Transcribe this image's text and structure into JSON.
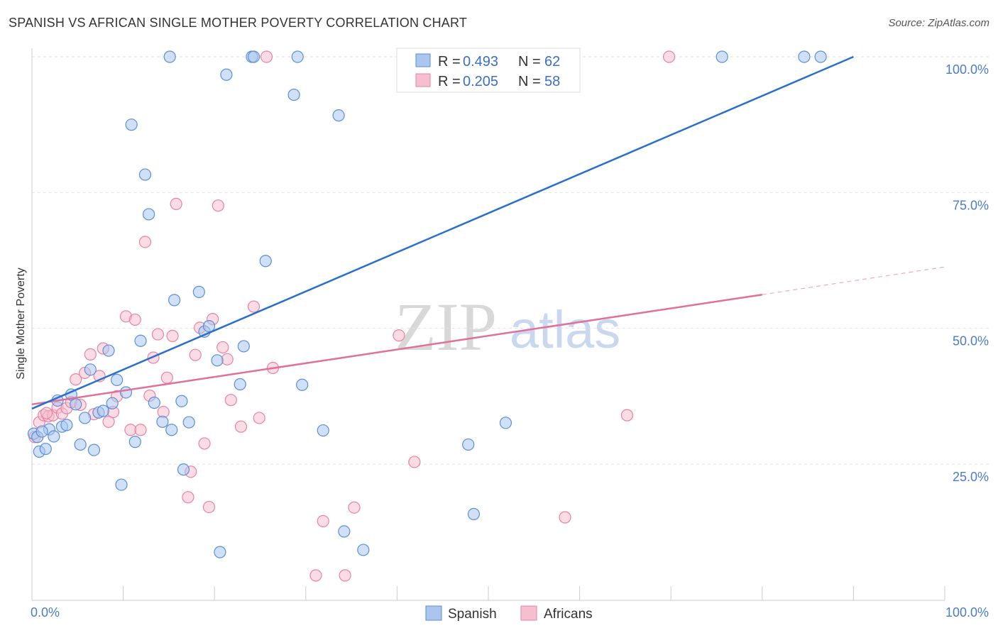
{
  "title": "SPANISH VS AFRICAN SINGLE MOTHER POVERTY CORRELATION CHART",
  "source": "Source: ZipAtlas.com",
  "watermark": {
    "zip": "ZIP",
    "atlas": "atlas"
  },
  "legend": {
    "rows": [
      {
        "r_label": "R =",
        "r_value": "0.493",
        "n_label": "N =",
        "n_value": "62"
      },
      {
        "r_label": "R =",
        "r_value": "0.205",
        "n_label": "N =",
        "n_value": "58"
      }
    ]
  },
  "bottom_legend": [
    "Spanish",
    "Africans"
  ],
  "colors": {
    "spanish_fill": "#aac6ee",
    "spanish_stroke": "#5b8fd6",
    "spanish_line": "#2a6fcc",
    "africans_fill": "#f6bfd0",
    "africans_stroke": "#e683a4",
    "africans_line": "#e07099"
  },
  "chart_data": {
    "type": "scatter",
    "title": "SPANISH VS AFRICAN SINGLE MOTHER POVERTY CORRELATION CHART",
    "xlabel": "",
    "ylabel": "Single Mother Poverty",
    "xlim": [
      0,
      100
    ],
    "ylim": [
      0,
      100
    ],
    "x_tick_labels": [
      "0.0%",
      "100.0%"
    ],
    "y_ticks": [
      25,
      50,
      75,
      100
    ],
    "y_tick_labels": [
      "25.0%",
      "50.0%",
      "75.0%",
      "100.0%"
    ],
    "grid": true,
    "legend_position": "top-center",
    "series": [
      {
        "name": "Spanish",
        "r": 0.493,
        "n": 62,
        "trend": {
          "x": [
            0,
            90
          ],
          "y": [
            35.2,
            100
          ]
        },
        "points": [
          {
            "x": 0.2,
            "y": 30.6
          },
          {
            "x": 0.8,
            "y": 27.3
          },
          {
            "x": 1.5,
            "y": 27.8
          },
          {
            "x": 1.9,
            "y": 31.4
          },
          {
            "x": 2.4,
            "y": 30.1
          },
          {
            "x": 2.8,
            "y": 36.7
          },
          {
            "x": 3.3,
            "y": 31.9
          },
          {
            "x": 3.8,
            "y": 32.2
          },
          {
            "x": 4.3,
            "y": 37.8
          },
          {
            "x": 4.8,
            "y": 36.0
          },
          {
            "x": 5.3,
            "y": 28.6
          },
          {
            "x": 5.8,
            "y": 33.5
          },
          {
            "x": 6.4,
            "y": 42.4
          },
          {
            "x": 6.8,
            "y": 27.6
          },
          {
            "x": 7.3,
            "y": 34.5
          },
          {
            "x": 7.8,
            "y": 34.8
          },
          {
            "x": 8.4,
            "y": 45.9
          },
          {
            "x": 8.8,
            "y": 36.2
          },
          {
            "x": 9.3,
            "y": 40.5
          },
          {
            "x": 9.8,
            "y": 21.2
          },
          {
            "x": 10.3,
            "y": 38.2
          },
          {
            "x": 10.9,
            "y": 87.5
          },
          {
            "x": 11.3,
            "y": 29.1
          },
          {
            "x": 11.9,
            "y": 47.7
          },
          {
            "x": 12.4,
            "y": 78.3
          },
          {
            "x": 12.8,
            "y": 71.0
          },
          {
            "x": 13.4,
            "y": 36.3
          },
          {
            "x": 14.3,
            "y": 32.8
          },
          {
            "x": 15.3,
            "y": 31.3
          },
          {
            "x": 15.6,
            "y": 55.2
          },
          {
            "x": 16.4,
            "y": 36.6
          },
          {
            "x": 16.6,
            "y": 24.0
          },
          {
            "x": 17.2,
            "y": 32.7
          },
          {
            "x": 18.3,
            "y": 56.7
          },
          {
            "x": 18.9,
            "y": 49.4
          },
          {
            "x": 19.4,
            "y": 50.4
          },
          {
            "x": 20.3,
            "y": 44.1
          },
          {
            "x": 20.6,
            "y": 8.8
          },
          {
            "x": 21.3,
            "y": 96.7
          },
          {
            "x": 22.8,
            "y": 39.7
          },
          {
            "x": 23.2,
            "y": 46.7
          },
          {
            "x": 24.1,
            "y": 100
          },
          {
            "x": 24.3,
            "y": 100
          },
          {
            "x": 25.6,
            "y": 62.4
          },
          {
            "x": 28.7,
            "y": 93.0
          },
          {
            "x": 29.6,
            "y": 39.6
          },
          {
            "x": 31.9,
            "y": 31.2
          },
          {
            "x": 33.6,
            "y": 89.2
          },
          {
            "x": 34.2,
            "y": 12.6
          },
          {
            "x": 36.3,
            "y": 9.2
          },
          {
            "x": 29.1,
            "y": 100
          },
          {
            "x": 15.1,
            "y": 100
          },
          {
            "x": 41.6,
            "y": 100
          },
          {
            "x": 47.8,
            "y": 28.6
          },
          {
            "x": 48.4,
            "y": 15.8
          },
          {
            "x": 51.9,
            "y": 32.6
          },
          {
            "x": 54.6,
            "y": 100
          },
          {
            "x": 75.6,
            "y": 100
          },
          {
            "x": 84.6,
            "y": 100
          },
          {
            "x": 86.4,
            "y": 100
          },
          {
            "x": 0.6,
            "y": 30.0
          },
          {
            "x": 1.1,
            "y": 31.0
          }
        ]
      },
      {
        "name": "Africans",
        "r": 0.205,
        "n": 58,
        "trend": {
          "x": [
            0,
            80
          ],
          "y": [
            36.0,
            56.2
          ]
        },
        "trend_extension": {
          "x": [
            80,
            100
          ],
          "y": [
            56.2,
            61.3
          ]
        },
        "points": [
          {
            "x": 0.3,
            "y": 30.0
          },
          {
            "x": 0.8,
            "y": 32.7
          },
          {
            "x": 1.3,
            "y": 34.0
          },
          {
            "x": 1.8,
            "y": 33.8
          },
          {
            "x": 2.3,
            "y": 34.0
          },
          {
            "x": 2.8,
            "y": 35.4
          },
          {
            "x": 3.3,
            "y": 34.3
          },
          {
            "x": 3.8,
            "y": 35.3
          },
          {
            "x": 4.3,
            "y": 36.4
          },
          {
            "x": 4.8,
            "y": 40.6
          },
          {
            "x": 5.3,
            "y": 35.9
          },
          {
            "x": 5.8,
            "y": 41.8
          },
          {
            "x": 6.4,
            "y": 45.2
          },
          {
            "x": 6.8,
            "y": 34.2
          },
          {
            "x": 7.4,
            "y": 41.2
          },
          {
            "x": 7.8,
            "y": 46.3
          },
          {
            "x": 8.4,
            "y": 32.8
          },
          {
            "x": 8.9,
            "y": 34.6
          },
          {
            "x": 9.3,
            "y": 37.5
          },
          {
            "x": 10.3,
            "y": 52.2
          },
          {
            "x": 10.8,
            "y": 31.3
          },
          {
            "x": 11.9,
            "y": 31.3
          },
          {
            "x": 11.3,
            "y": 51.6
          },
          {
            "x": 12.4,
            "y": 65.9
          },
          {
            "x": 12.9,
            "y": 37.6
          },
          {
            "x": 13.3,
            "y": 44.6
          },
          {
            "x": 13.8,
            "y": 48.9
          },
          {
            "x": 14.4,
            "y": 34.6
          },
          {
            "x": 14.8,
            "y": 40.9
          },
          {
            "x": 15.4,
            "y": 48.6
          },
          {
            "x": 15.8,
            "y": 72.9
          },
          {
            "x": 17.1,
            "y": 18.9
          },
          {
            "x": 17.4,
            "y": 23.6
          },
          {
            "x": 17.9,
            "y": 45.1
          },
          {
            "x": 18.4,
            "y": 50.1
          },
          {
            "x": 18.9,
            "y": 28.8
          },
          {
            "x": 19.4,
            "y": 17.1
          },
          {
            "x": 19.8,
            "y": 51.7
          },
          {
            "x": 20.4,
            "y": 72.6
          },
          {
            "x": 20.9,
            "y": 46.5
          },
          {
            "x": 21.4,
            "y": 44.3
          },
          {
            "x": 21.8,
            "y": 36.8
          },
          {
            "x": 22.9,
            "y": 31.9
          },
          {
            "x": 24.3,
            "y": 54.0
          },
          {
            "x": 24.9,
            "y": 33.5
          },
          {
            "x": 26.4,
            "y": 42.7
          },
          {
            "x": 31.1,
            "y": 4.5
          },
          {
            "x": 31.9,
            "y": 14.5
          },
          {
            "x": 34.3,
            "y": 4.5
          },
          {
            "x": 35.3,
            "y": 17.0
          },
          {
            "x": 40.2,
            "y": 48.7
          },
          {
            "x": 41.9,
            "y": 25.4
          },
          {
            "x": 58.4,
            "y": 15.2
          },
          {
            "x": 65.2,
            "y": 34.0
          },
          {
            "x": 25.7,
            "y": 100
          },
          {
            "x": 59.2,
            "y": 100
          },
          {
            "x": 69.8,
            "y": 100
          },
          {
            "x": 1.6,
            "y": 34.4
          }
        ]
      }
    ]
  }
}
